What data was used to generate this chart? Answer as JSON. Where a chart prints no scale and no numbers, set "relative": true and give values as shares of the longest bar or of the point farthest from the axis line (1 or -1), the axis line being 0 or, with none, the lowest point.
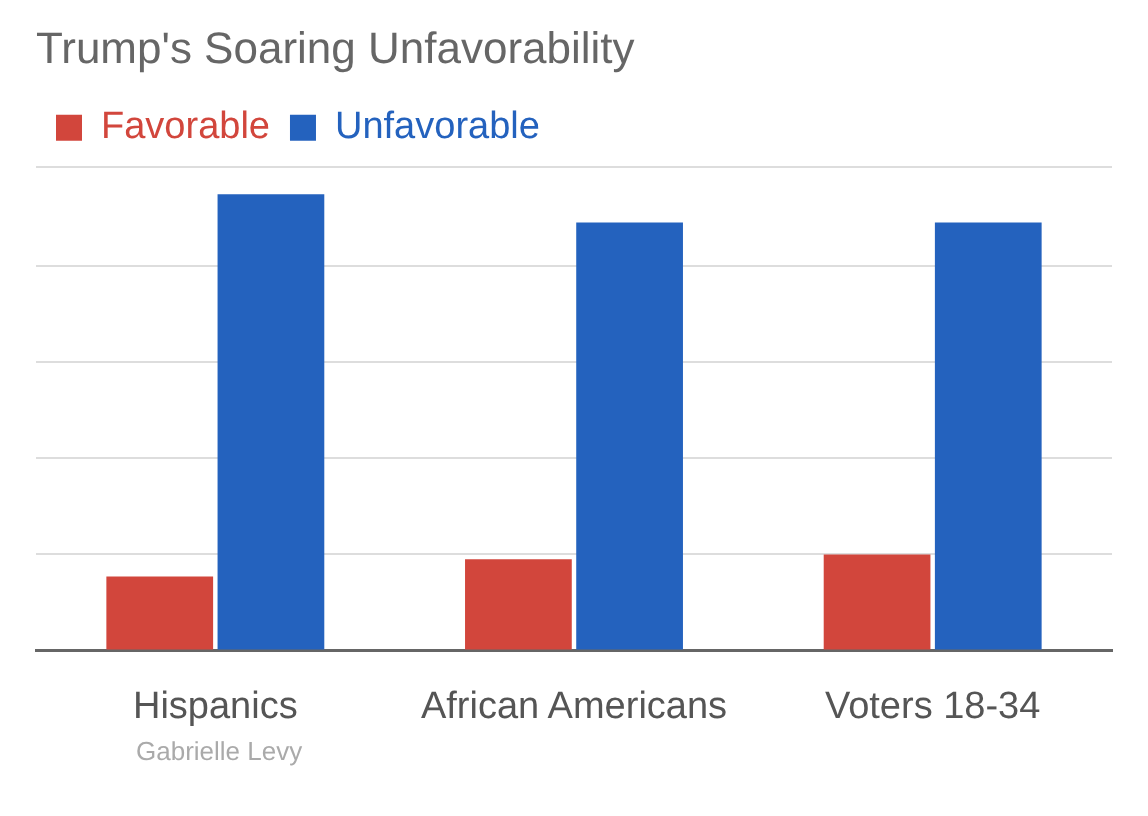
{
  "chart_data": {
    "type": "bar",
    "title": "Trump's Soaring Unfavorability",
    "categories": [
      "Hispanics",
      "African Americans",
      "Voters 18-34"
    ],
    "relative": true,
    "grid": "y",
    "legend": "top left",
    "series": [
      {
        "name": "Favorable",
        "color": "#d2463c",
        "values": [
          0.162,
          0.2,
          0.21
        ]
      },
      {
        "name": "Unfavorable",
        "color": "#2462be",
        "values": [
          1,
          0.938,
          0.938
        ]
      }
    ],
    "annotations": [
      "Gabrielle Levy"
    ]
  }
}
